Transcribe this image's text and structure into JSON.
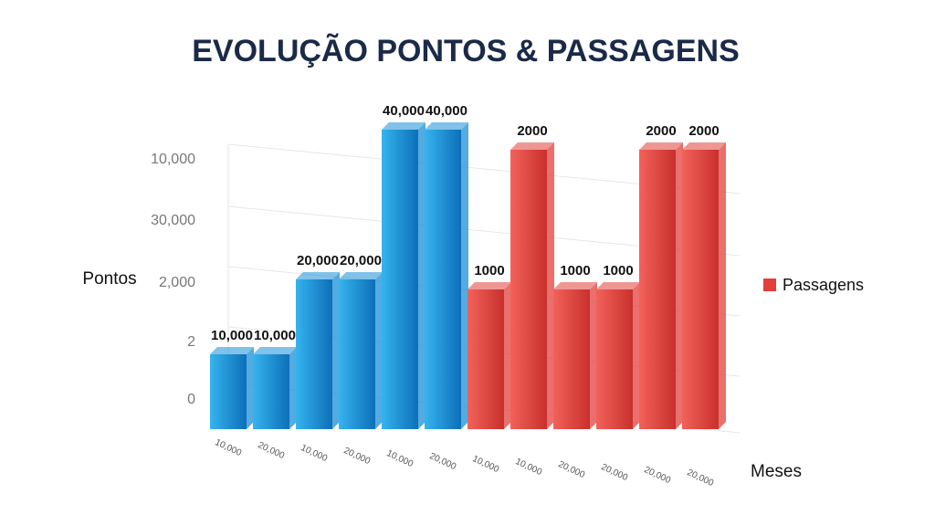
{
  "chart_data": {
    "type": "bar",
    "title": "EVOLUÇÃO PONTOS & PASSAGENS",
    "y_label": "Pontos",
    "x_label": "Meses",
    "y_axis_labels": [
      "10,000",
      "30,000",
      "2,000",
      "2",
      "0"
    ],
    "categories": [
      "10,000",
      "20,000",
      "10,000",
      "20,000",
      "10,000",
      "20,000",
      "10,000",
      "10,000",
      "20,000",
      "20,000",
      "20,000",
      "20,000"
    ],
    "ylim": [
      0,
      40000
    ],
    "y2lim": [
      0,
      2000
    ],
    "series": [
      {
        "color": "#1a8fd8",
        "values": [
          10000,
          10000,
          20000,
          20000,
          40000,
          40000,
          null,
          null,
          null,
          null,
          null,
          null
        ],
        "value_labels": [
          "10,000",
          "10,000",
          "20,000",
          "20,000",
          "40,000",
          "40,000",
          null,
          null,
          null,
          null,
          null,
          null
        ]
      },
      {
        "name": "Passagens",
        "color": "#e2403b",
        "axis": "y2",
        "values": [
          null,
          null,
          null,
          null,
          null,
          null,
          1000,
          2000,
          1000,
          1000,
          2000,
          2000
        ]
      }
    ],
    "legend": "right"
  }
}
